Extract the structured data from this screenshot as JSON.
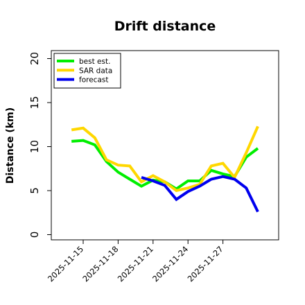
{
  "chart_data": {
    "type": "line",
    "title": "Drift distance",
    "xlabel": "",
    "ylabel": "Distance (km)",
    "ylim": [
      0,
      20
    ],
    "yticks": [
      "0",
      "5",
      "10",
      "15",
      "20"
    ],
    "xticks": [
      "2025-11-15",
      "2025-11-18",
      "2025-11-21",
      "2025-11-24",
      "2025-11-27"
    ],
    "grid": false,
    "legend_position": "top-left",
    "series": [
      {
        "name": "best est.",
        "color": "#00ee00",
        "x": [
          "2025-11-14",
          "2025-11-15",
          "2025-11-16",
          "2025-11-17",
          "2025-11-18",
          "2025-11-19",
          "2025-11-20",
          "2025-11-21",
          "2025-11-22",
          "2025-11-23",
          "2025-11-24",
          "2025-11-25",
          "2025-11-26",
          "2025-11-27",
          "2025-11-28",
          "2025-11-29",
          "2025-11-30"
        ],
        "values": [
          10.6,
          10.7,
          10.2,
          8.3,
          7.1,
          6.3,
          5.5,
          6.2,
          6.0,
          5.2,
          6.1,
          6.1,
          7.3,
          6.9,
          6.6,
          8.8,
          9.8
        ]
      },
      {
        "name": "SAR data",
        "color": "#ffd700",
        "x": [
          "2025-11-14",
          "2025-11-15",
          "2025-11-16",
          "2025-11-17",
          "2025-11-18",
          "2025-11-19",
          "2025-11-20",
          "2025-11-21",
          "2025-11-22",
          "2025-11-23",
          "2025-11-24",
          "2025-11-25",
          "2025-11-26",
          "2025-11-27",
          "2025-11-28",
          "2025-11-29",
          "2025-11-30"
        ],
        "values": [
          11.9,
          12.1,
          11.0,
          8.5,
          7.9,
          7.8,
          6.0,
          6.7,
          6.0,
          5.0,
          5.3,
          5.7,
          7.8,
          8.1,
          6.5,
          9.3,
          12.3
        ]
      },
      {
        "name": "forecast",
        "color": "#0000ee",
        "x": [
          "2025-11-20",
          "2025-11-21",
          "2025-11-22",
          "2025-11-23",
          "2025-11-24",
          "2025-11-25",
          "2025-11-26",
          "2025-11-27",
          "2025-11-28",
          "2025-11-29",
          "2025-11-30"
        ],
        "values": [
          6.5,
          6.1,
          5.6,
          4.0,
          4.9,
          5.5,
          6.3,
          6.6,
          6.3,
          5.3,
          2.6
        ]
      }
    ]
  }
}
